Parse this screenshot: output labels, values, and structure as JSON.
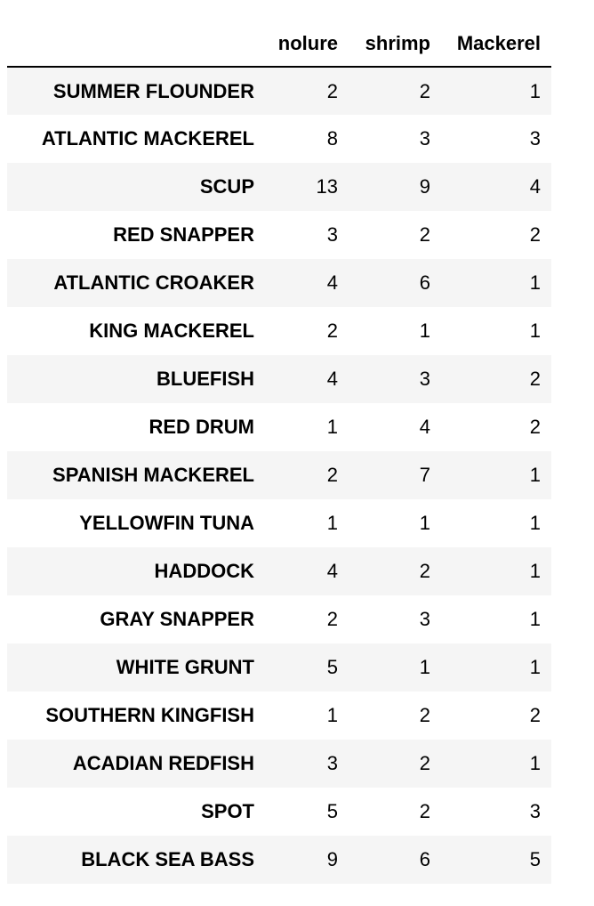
{
  "table": {
    "columns": [
      "nolure",
      "shrimp",
      "Mackerel"
    ],
    "rows": [
      {
        "name": "SUMMER FLOUNDER",
        "nolure": "2",
        "shrimp": "2",
        "mackerel": "1"
      },
      {
        "name": "ATLANTIC MACKEREL",
        "nolure": "8",
        "shrimp": "3",
        "mackerel": "3"
      },
      {
        "name": "SCUP",
        "nolure": "13",
        "shrimp": "9",
        "mackerel": "4"
      },
      {
        "name": "RED SNAPPER",
        "nolure": "3",
        "shrimp": "2",
        "mackerel": "2"
      },
      {
        "name": "ATLANTIC CROAKER",
        "nolure": "4",
        "shrimp": "6",
        "mackerel": "1"
      },
      {
        "name": "KING MACKEREL",
        "nolure": "2",
        "shrimp": "1",
        "mackerel": "1"
      },
      {
        "name": "BLUEFISH",
        "nolure": "4",
        "shrimp": "3",
        "mackerel": "2"
      },
      {
        "name": "RED DRUM",
        "nolure": "1",
        "shrimp": "4",
        "mackerel": "2"
      },
      {
        "name": "SPANISH MACKEREL",
        "nolure": "2",
        "shrimp": "7",
        "mackerel": "1"
      },
      {
        "name": "YELLOWFIN TUNA",
        "nolure": "1",
        "shrimp": "1",
        "mackerel": "1"
      },
      {
        "name": "HADDOCK",
        "nolure": "4",
        "shrimp": "2",
        "mackerel": "1"
      },
      {
        "name": "GRAY SNAPPER",
        "nolure": "2",
        "shrimp": "3",
        "mackerel": "1"
      },
      {
        "name": "WHITE GRUNT",
        "nolure": "5",
        "shrimp": "1",
        "mackerel": "1"
      },
      {
        "name": "SOUTHERN KINGFISH",
        "nolure": "1",
        "shrimp": "2",
        "mackerel": "2"
      },
      {
        "name": "ACADIAN REDFISH",
        "nolure": "3",
        "shrimp": "2",
        "mackerel": "1"
      },
      {
        "name": "SPOT",
        "nolure": "5",
        "shrimp": "2",
        "mackerel": "3"
      },
      {
        "name": "BLACK SEA BASS",
        "nolure": "9",
        "shrimp": "6",
        "mackerel": "5"
      }
    ]
  },
  "colors": {
    "stripe": "#f5f5f5",
    "background": "#ffffff",
    "header_rule": "#000000"
  }
}
